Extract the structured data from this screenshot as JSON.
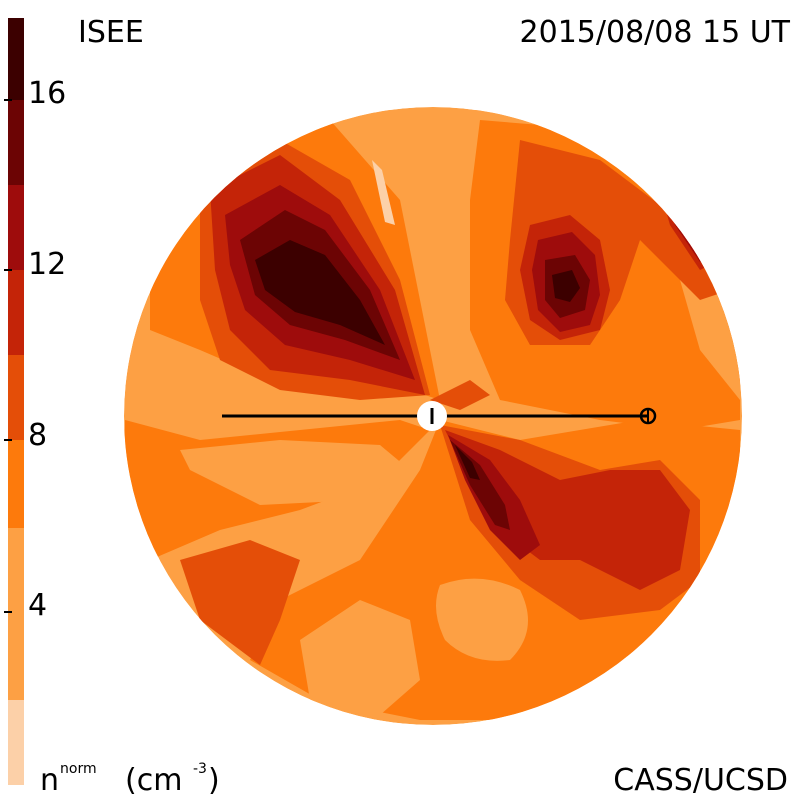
{
  "header": {
    "left": "ISEE",
    "right": "2015/08/08 15 UT"
  },
  "footer": {
    "unit_main": "n",
    "unit_super": "norm",
    "unit_paren_open": "(cm",
    "unit_exp": "-3",
    "unit_paren_close": ")",
    "credit": "CASS/UCSD"
  },
  "colorbar": {
    "ticks": [
      "4",
      "8",
      "12",
      "16"
    ],
    "colors": [
      "#fcd0a8",
      "#fda044",
      "#fd7a0c",
      "#e44e08",
      "#c42408",
      "#9e0c0c",
      "#6c0404",
      "#3c0000"
    ]
  },
  "map": {
    "colors": {
      "lightest": "#fcd0a8",
      "light": "#fda044",
      "mid": "#fd7a0c",
      "orange_dark": "#e44e08",
      "red": "#c42408",
      "dark_red": "#9e0c0c",
      "maroon": "#6c0404",
      "darkest": "#3c0000"
    },
    "observer_symbol": "sun-center",
    "earth_symbol": "earth-crosshair"
  }
}
